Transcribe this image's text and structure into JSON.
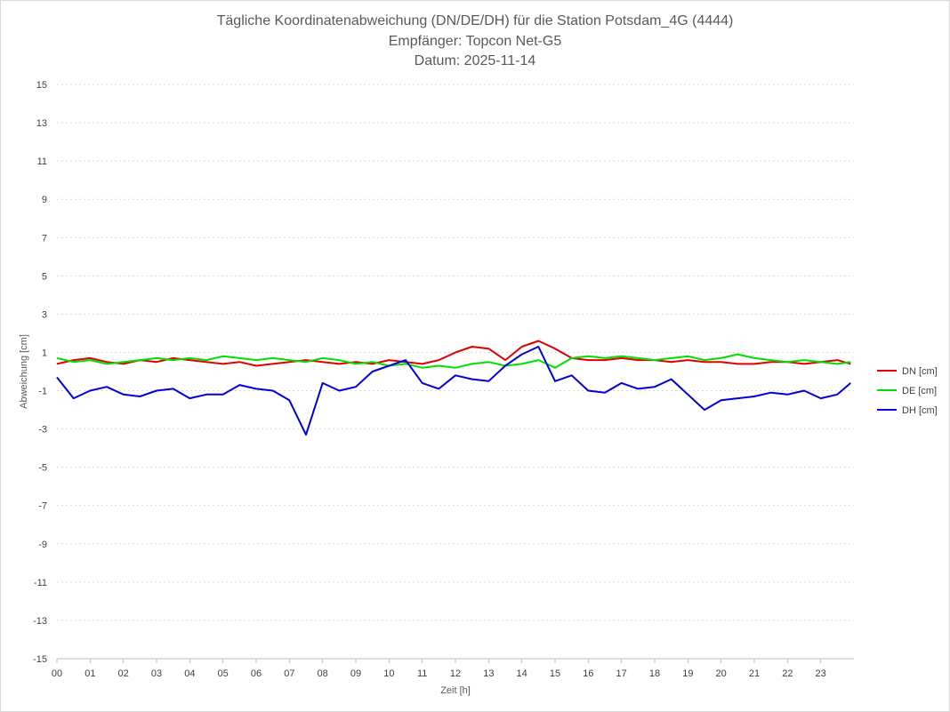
{
  "chart_data": {
    "type": "line",
    "title": [
      "Tägliche Koordinatenabweichung (DN/DE/DH) für die Station Potsdam_4G (4444)",
      "Empfänger: Topcon Net-G5",
      "Datum: 2025-11-14"
    ],
    "xlabel": "Zeit [h]",
    "ylabel": "Abweichung [cm]",
    "xlim": [
      0,
      24
    ],
    "ylim": [
      -15,
      15
    ],
    "yticks": [
      15,
      13,
      11,
      9,
      7,
      5,
      3,
      1,
      -1,
      -3,
      -5,
      -7,
      -9,
      -11,
      -13,
      -15
    ],
    "ytick_labels": [
      "15",
      "13",
      "11",
      "9",
      "7",
      "5",
      "3",
      "1",
      "-1",
      "-3",
      "-5",
      "-7",
      "-9",
      "-11",
      "-13",
      "-15"
    ],
    "xtick_labels": [
      "00",
      "01",
      "02",
      "03",
      "04",
      "05",
      "06",
      "07",
      "08",
      "09",
      "10",
      "11",
      "12",
      "13",
      "14",
      "15",
      "16",
      "17",
      "18",
      "19",
      "20",
      "21",
      "22",
      "23"
    ],
    "grid": true,
    "legend_position": "right",
    "x": [
      0,
      0.5,
      1,
      1.5,
      2,
      2.5,
      3,
      3.5,
      4,
      4.5,
      5,
      5.5,
      6,
      6.5,
      7,
      7.5,
      8,
      8.5,
      9,
      9.5,
      10,
      10.5,
      11,
      11.5,
      12,
      12.5,
      13,
      13.5,
      14,
      14.5,
      15,
      15.5,
      16,
      16.5,
      17,
      17.5,
      18,
      18.5,
      19,
      19.5,
      20,
      20.5,
      21,
      21.5,
      22,
      22.5,
      23,
      23.5,
      23.9
    ],
    "series": [
      {
        "name": "DN [cm]",
        "color": "#e00000",
        "values": [
          0.4,
          0.6,
          0.7,
          0.5,
          0.4,
          0.6,
          0.5,
          0.7,
          0.6,
          0.5,
          0.4,
          0.5,
          0.3,
          0.4,
          0.5,
          0.6,
          0.5,
          0.4,
          0.5,
          0.4,
          0.6,
          0.5,
          0.4,
          0.6,
          1.0,
          1.3,
          1.2,
          0.6,
          1.3,
          1.6,
          1.2,
          0.7,
          0.6,
          0.6,
          0.7,
          0.6,
          0.6,
          0.5,
          0.6,
          0.5,
          0.5,
          0.4,
          0.4,
          0.5,
          0.5,
          0.4,
          0.5,
          0.6,
          0.4
        ]
      },
      {
        "name": "DE [cm]",
        "color": "#00e000",
        "values": [
          0.7,
          0.5,
          0.6,
          0.4,
          0.5,
          0.6,
          0.7,
          0.6,
          0.7,
          0.6,
          0.8,
          0.7,
          0.6,
          0.7,
          0.6,
          0.5,
          0.7,
          0.6,
          0.4,
          0.5,
          0.3,
          0.4,
          0.2,
          0.3,
          0.2,
          0.4,
          0.5,
          0.3,
          0.4,
          0.6,
          0.2,
          0.7,
          0.8,
          0.7,
          0.8,
          0.7,
          0.6,
          0.7,
          0.8,
          0.6,
          0.7,
          0.9,
          0.7,
          0.6,
          0.5,
          0.6,
          0.5,
          0.4,
          0.5
        ]
      },
      {
        "name": "DH [cm]",
        "color": "#0000e0",
        "values": [
          -0.3,
          -1.4,
          -1.0,
          -0.8,
          -1.2,
          -1.3,
          -1.0,
          -0.9,
          -1.4,
          -1.2,
          -1.2,
          -0.7,
          -0.9,
          -1.0,
          -1.5,
          -3.3,
          -0.6,
          -1.0,
          -0.8,
          0.0,
          0.3,
          0.6,
          -0.6,
          -0.9,
          -0.2,
          -0.4,
          -0.5,
          0.3,
          0.9,
          1.3,
          -0.5,
          -0.2,
          -1.0,
          -1.1,
          -0.6,
          -0.9,
          -0.8,
          -0.4,
          -1.2,
          -2.0,
          -1.5,
          -1.4,
          -1.3,
          -1.1,
          -1.2,
          -1.0,
          -1.4,
          -1.2,
          -0.6
        ]
      }
    ]
  }
}
